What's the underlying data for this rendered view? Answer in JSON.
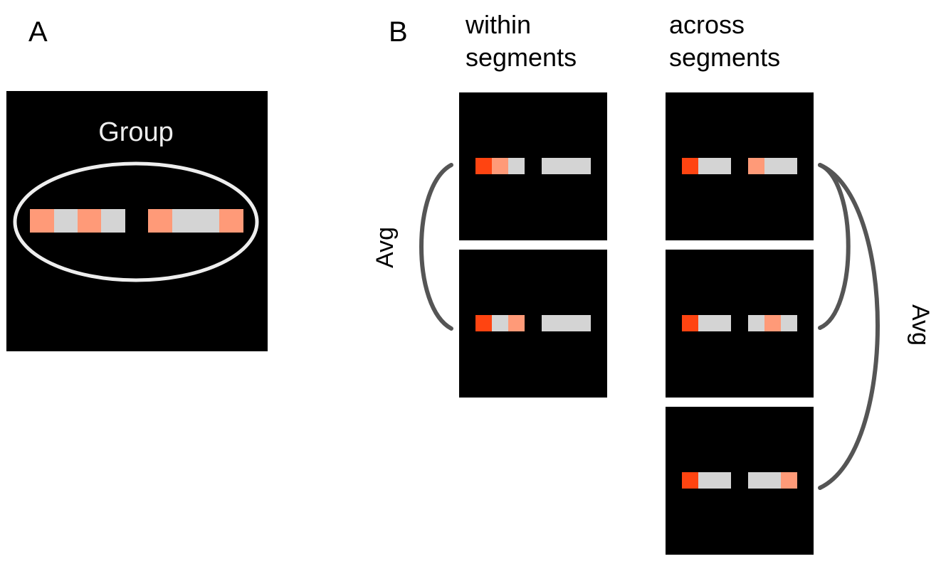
{
  "colors": {
    "background": "#ffffff",
    "panel": "#000000",
    "segment": "#d4d4d4",
    "highlight_light": "#ff9a78",
    "highlight_strong": "#ff4411",
    "bracket": "#555555",
    "ellipse": "#eeeeee"
  },
  "panel_a": {
    "letter": "A",
    "group_label": "Group"
  },
  "panel_b": {
    "letter": "B",
    "within_title_line1": "within",
    "within_title_line2": "segments",
    "across_title_line1": "across",
    "across_title_line2": "segments",
    "avg_left": "Avg",
    "avg_right": "Avg"
  }
}
